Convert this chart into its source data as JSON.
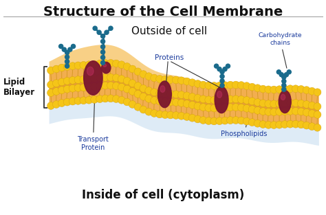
{
  "title": "Structure of the Cell Membrane",
  "title_fontsize": 14,
  "title_fontweight": "bold",
  "title_color": "#111111",
  "outside_label": "Outside of cell",
  "outside_fontsize": 11,
  "inside_label": "Inside of cell (cytoplasm)",
  "inside_fontsize": 12,
  "lipid_label": "Lipid\nBilayer",
  "proteins_label": "Proteins",
  "transport_label": "Transport\nProtein",
  "carbohydrate_label": "Carbohydrate\nchains",
  "phospholipids_label": "Phospholipids",
  "annotation_color": "#1a3a9c",
  "background_color": "#ffffff",
  "head_color": "#f5c518",
  "head_edge": "#d4a010",
  "fluid_color": "#f0a030",
  "protein_color": "#7a1530",
  "gp_color": "#1a6b8c",
  "shadow_color": "#c8dff0"
}
